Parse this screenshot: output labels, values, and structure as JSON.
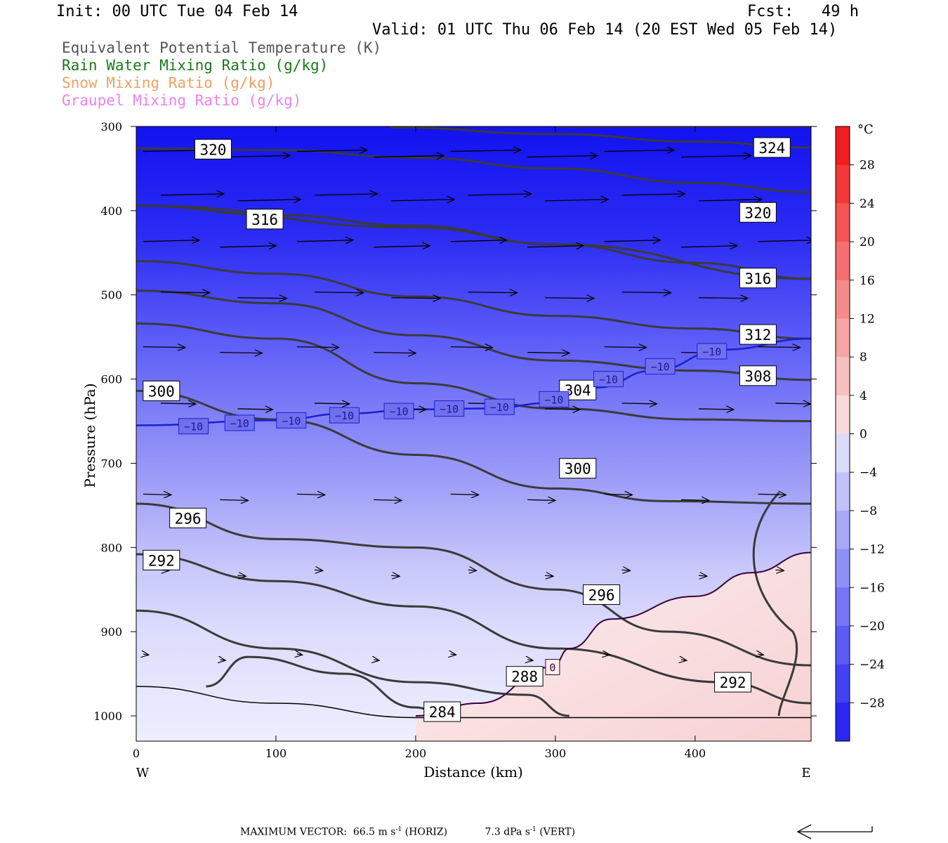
{
  "header": {
    "init": "Init: 00 UTC Tue 04 Feb 14",
    "fcst": "Fcst:   49 h",
    "valid": "Valid: 01 UTC Thu 06 Feb 14 (20 EST Wed 05 Feb 14)"
  },
  "legend": [
    {
      "text": "Equivalent Potential Temperature (K)",
      "color": "#555555"
    },
    {
      "text": "Rain Water Mixing Ratio (g/kg)",
      "color": "#1a7a1a"
    },
    {
      "text": "Snow Mixing Ratio (g/kg)",
      "color": "#f0a060"
    },
    {
      "text": "Graupel Mixing Ratio (g/kg)",
      "color": "#ee82ee"
    }
  ],
  "footer": {
    "max_vector_label": "MAXIMUM VECTOR:",
    "horiz": "66.5 m s",
    "horiz_exp": "-1",
    "horiz_tag": "(HORIZ)",
    "vert": "7.3 dPa s",
    "vert_exp": "-1",
    "vert_tag": "(VERT)"
  },
  "chart_data": {
    "type": "cross-section",
    "xlabel": "Distance (km)",
    "ylabel": "Pressure (hPa)",
    "xlim": [
      0,
      483
    ],
    "ylim": [
      1030,
      300
    ],
    "x_ticks": [
      0,
      100,
      200,
      300,
      400
    ],
    "y_ticks": [
      300,
      400,
      500,
      600,
      700,
      800,
      900,
      1000
    ],
    "x_end_labels": {
      "left": "W",
      "right": "E"
    },
    "colorbar": {
      "unit": "°C",
      "ticks": [
        28,
        24,
        20,
        16,
        12,
        8,
        4,
        0,
        -4,
        -8,
        -12,
        -16,
        -20,
        -24,
        -28
      ],
      "tick_labels": [
        "28",
        "24",
        "20",
        "16",
        "12",
        "8",
        "4",
        "0",
        "−4",
        "−8",
        "−12",
        "−16",
        "−20",
        "−24",
        "−28"
      ],
      "range": [
        -32,
        32
      ]
    },
    "theta_e_contours": [
      {
        "label": "320",
        "label_pos": [
          55,
          327
        ],
        "pts": [
          [
            0,
            326
          ],
          [
            100,
            328
          ],
          [
            200,
            337
          ],
          [
            300,
            350
          ],
          [
            400,
            367
          ],
          [
            483,
            378
          ]
        ]
      },
      {
        "label": "320",
        "label_pos": [
          445,
          402
        ],
        "pts": [
          [
            182,
            301
          ],
          [
            300,
            309
          ],
          [
            400,
            318
          ],
          [
            483,
            325
          ]
        ]
      },
      {
        "label": "324",
        "label_pos": [
          455,
          325
        ],
        "pts": [
          [
            300,
            300
          ],
          [
            483,
            300
          ]
        ]
      },
      {
        "label": "316",
        "label_pos": [
          92,
          410
        ],
        "pts": [
          [
            0,
            394
          ],
          [
            100,
            405
          ],
          [
            200,
            418
          ],
          [
            300,
            440
          ],
          [
            400,
            462
          ],
          [
            483,
            481
          ]
        ]
      },
      {
        "label": "316",
        "label_pos": [
          445,
          480
        ],
        "pts": [
          [
            0,
            394
          ],
          [
            200,
            420
          ],
          [
            300,
            440
          ],
          [
            483,
            481
          ]
        ]
      },
      {
        "label": "312",
        "label_pos": [
          445,
          547
        ],
        "pts": [
          [
            0,
            460
          ],
          [
            100,
            475
          ],
          [
            200,
            502
          ],
          [
            300,
            525
          ],
          [
            400,
            540
          ],
          [
            483,
            552
          ]
        ]
      },
      {
        "label": "308",
        "label_pos": [
          445,
          596
        ],
        "pts": [
          [
            0,
            495
          ],
          [
            100,
            510
          ],
          [
            200,
            548
          ],
          [
            300,
            578
          ],
          [
            400,
            590
          ],
          [
            483,
            601
          ]
        ]
      },
      {
        "label": "304",
        "label_pos": [
          316,
          613
        ],
        "pts": [
          [
            0,
            534
          ],
          [
            100,
            552
          ],
          [
            200,
            605
          ],
          [
            300,
            635
          ],
          [
            400,
            648
          ],
          [
            483,
            650
          ]
        ]
      },
      {
        "label": "300",
        "label_pos": [
          18,
          614
        ],
        "pts": [
          [
            0,
            614
          ],
          [
            100,
            648
          ],
          [
            200,
            690
          ],
          [
            300,
            730
          ],
          [
            380,
            745
          ],
          [
            483,
            748
          ]
        ]
      },
      {
        "label": "300",
        "label_pos": [
          316,
          706
        ],
        "pts": [
          [
            0,
            614
          ],
          [
            100,
            648
          ],
          [
            200,
            690
          ],
          [
            300,
            730
          ],
          [
            380,
            745
          ],
          [
            483,
            748
          ]
        ]
      },
      {
        "label": "296",
        "label_pos": [
          37,
          765
        ],
        "pts": [
          [
            0,
            748
          ],
          [
            100,
            790
          ],
          [
            200,
            800
          ],
          [
            300,
            850
          ],
          [
            380,
            900
          ],
          [
            483,
            940
          ]
        ]
      },
      {
        "label": "296",
        "label_pos": [
          333,
          856
        ],
        "pts": [
          [
            0,
            748
          ],
          [
            100,
            790
          ],
          [
            200,
            800
          ],
          [
            300,
            850
          ],
          [
            380,
            900
          ],
          [
            483,
            940
          ]
        ]
      },
      {
        "label": "292",
        "label_pos": [
          18,
          815
        ],
        "pts": [
          [
            0,
            808
          ],
          [
            100,
            840
          ],
          [
            200,
            870
          ],
          [
            300,
            920
          ],
          [
            420,
            960
          ],
          [
            483,
            985
          ]
        ]
      },
      {
        "label": "292",
        "label_pos": [
          427,
          960
        ],
        "pts": [
          [
            0,
            808
          ],
          [
            100,
            840
          ],
          [
            200,
            870
          ],
          [
            300,
            920
          ],
          [
            420,
            960
          ],
          [
            483,
            985
          ]
        ]
      },
      {
        "label": "288",
        "label_pos": [
          278,
          953
        ],
        "pts": [
          [
            0,
            875
          ],
          [
            100,
            920
          ],
          [
            200,
            960
          ],
          [
            280,
            975
          ],
          [
            310,
            1000
          ]
        ]
      },
      {
        "label": "284",
        "label_pos": [
          219,
          995
        ],
        "pts": [
          [
            50,
            965
          ],
          [
            80,
            930
          ],
          [
            150,
            950
          ],
          [
            200,
            990
          ],
          [
            220,
            1000
          ]
        ]
      }
    ],
    "isotherm_minus10": {
      "label": "−10",
      "label_pos": [
        [
          41,
          656
        ],
        [
          74,
          652
        ],
        [
          111,
          649
        ],
        [
          149,
          643
        ],
        [
          188,
          638
        ],
        [
          224,
          635
        ],
        [
          260,
          633
        ],
        [
          299,
          624
        ],
        [
          338,
          600
        ],
        [
          375,
          585
        ],
        [
          412,
          567
        ]
      ],
      "pts": [
        [
          0,
          655
        ],
        [
          100,
          649
        ],
        [
          150,
          641
        ],
        [
          200,
          636
        ],
        [
          250,
          635
        ],
        [
          300,
          628
        ],
        [
          330,
          610
        ],
        [
          370,
          590
        ],
        [
          420,
          565
        ],
        [
          483,
          552
        ]
      ]
    },
    "isotherm_0": {
      "label": "0",
      "label_pos": [
        298,
        942
      ],
      "pts": [
        [
          200,
          1000
        ],
        [
          245,
          985
        ],
        [
          298,
          942
        ],
        [
          310,
          920
        ],
        [
          340,
          885
        ],
        [
          400,
          858
        ],
        [
          440,
          830
        ],
        [
          483,
          806
        ]
      ]
    },
    "wind_rows_p": [
      333,
      385,
      440,
      500,
      565,
      632,
      740,
      830,
      930
    ]
  }
}
